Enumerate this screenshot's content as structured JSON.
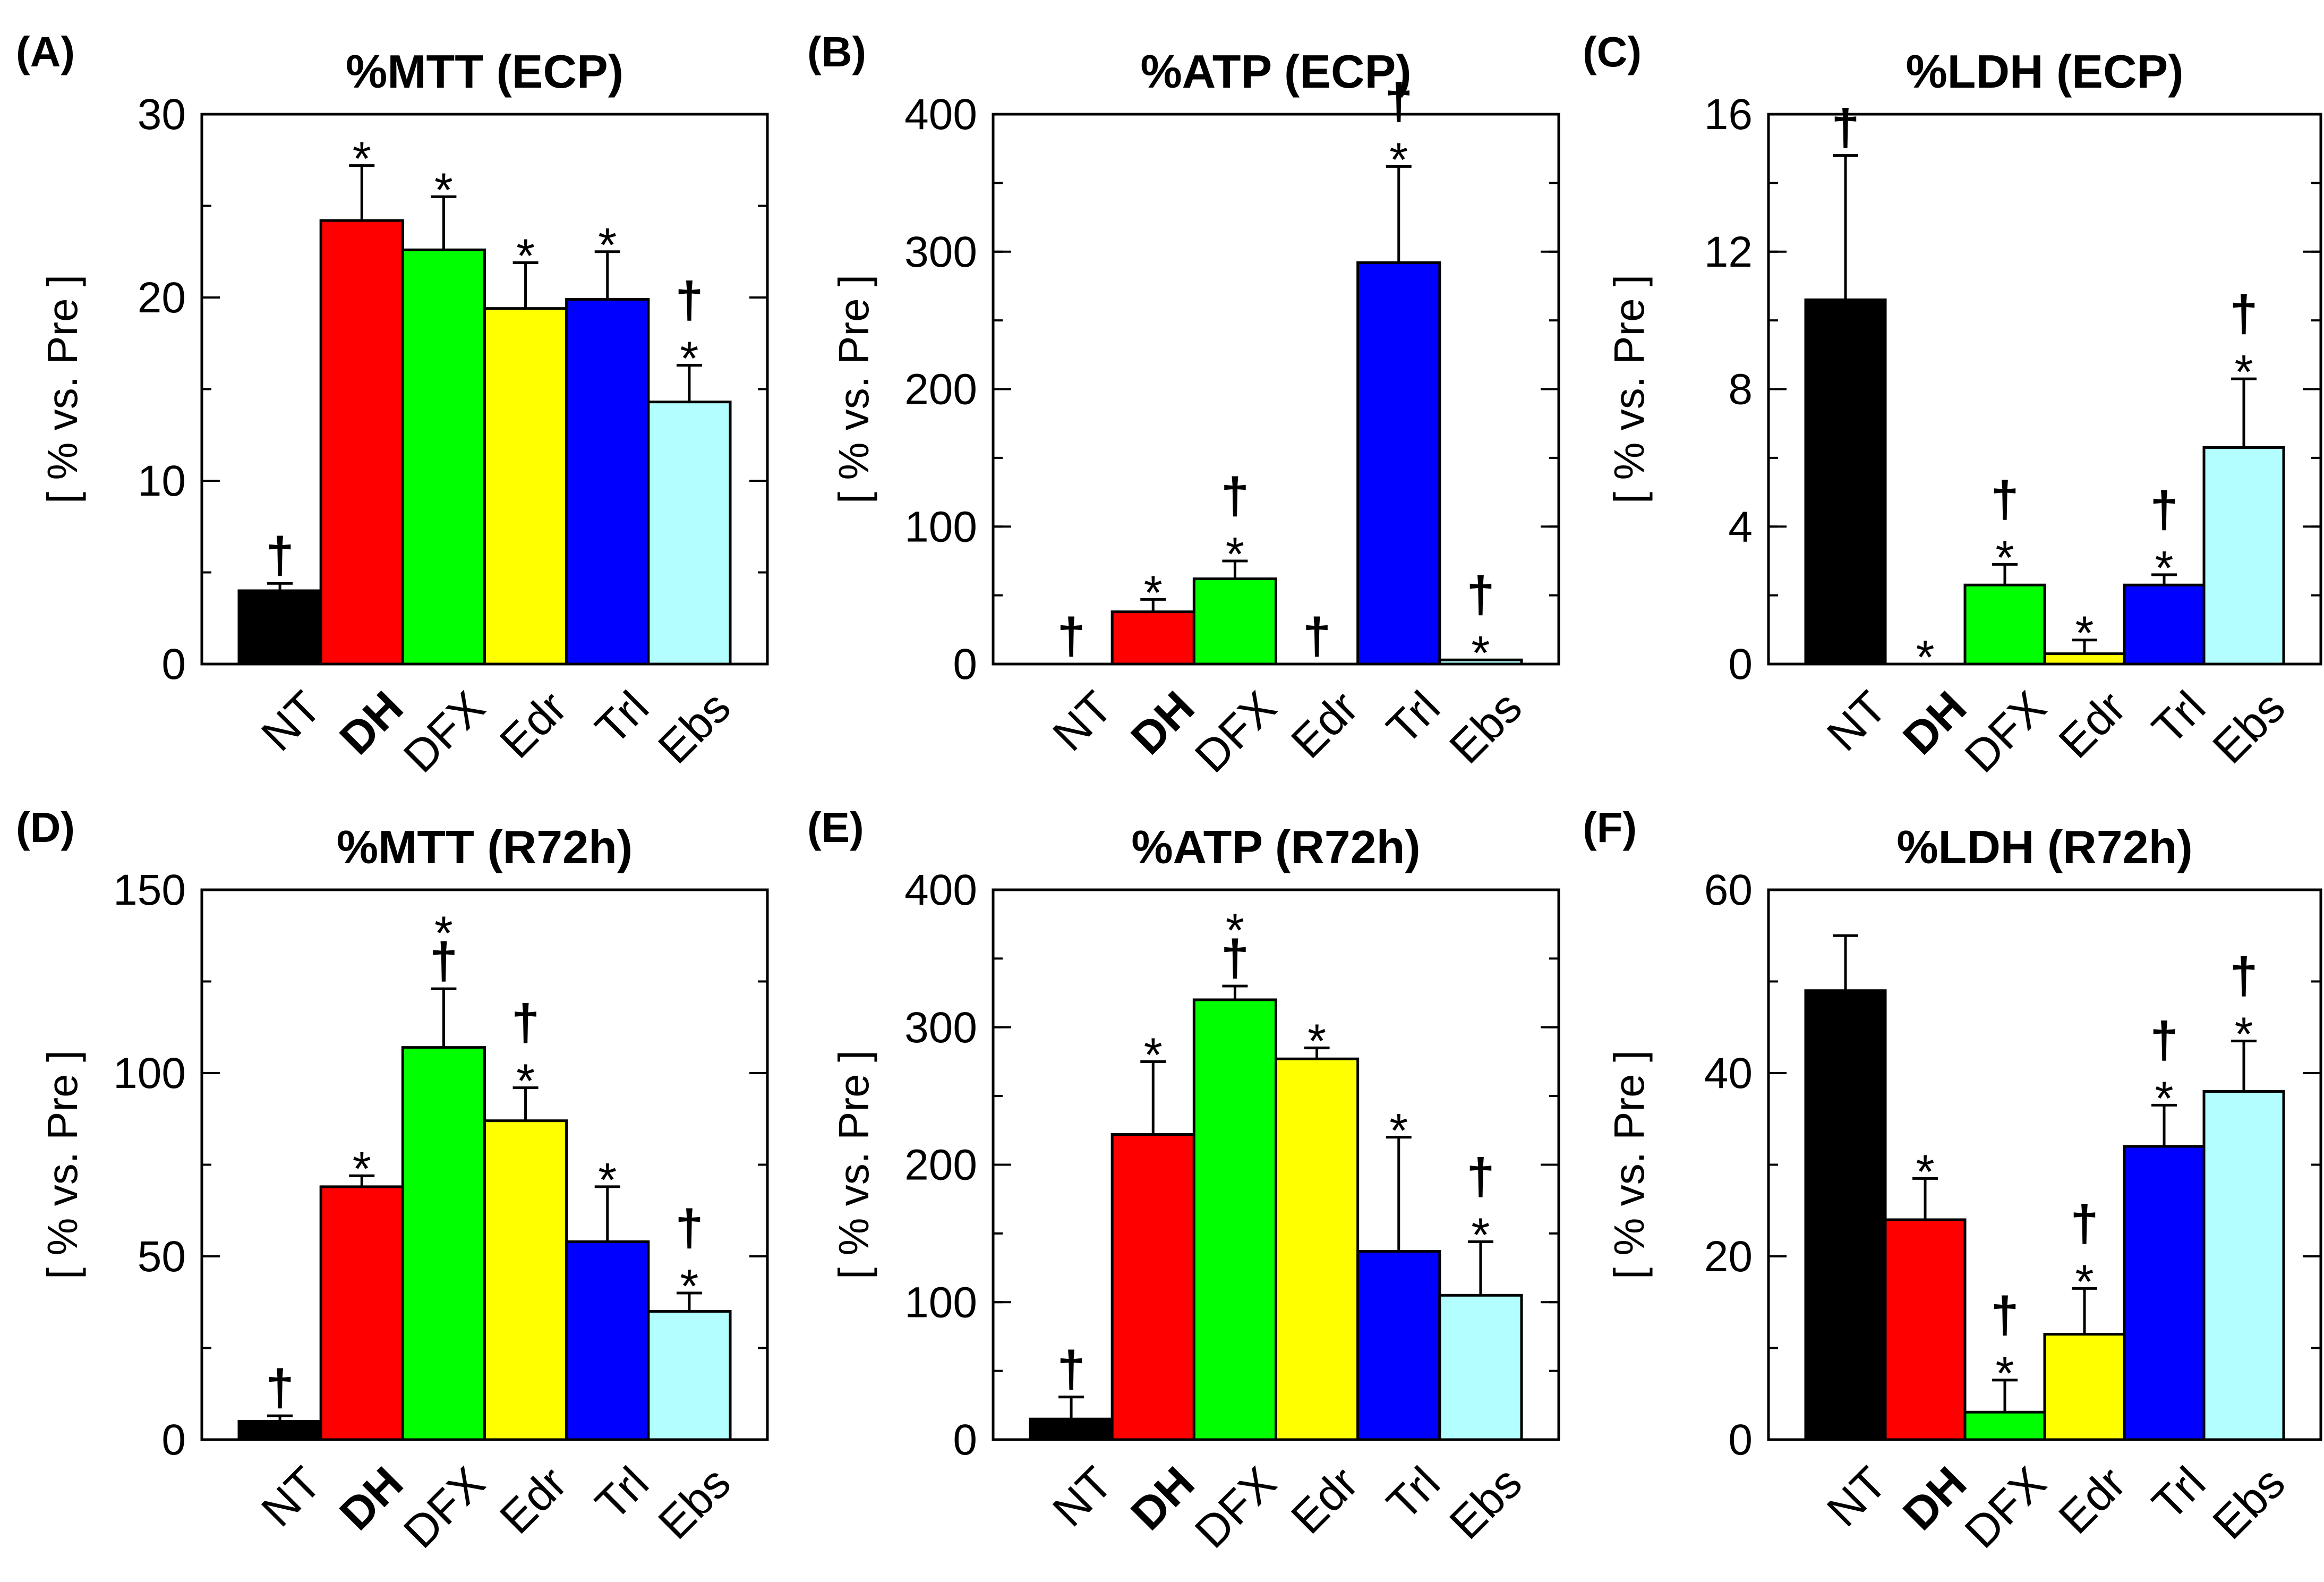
{
  "chart_data": [
    {
      "type": "bar",
      "panel": "(A)",
      "title": "%MTT (ECP)",
      "ylabel": "[ % vs. Pre ]",
      "ylim": [
        0,
        30
      ],
      "yticks": [
        0,
        10,
        20,
        30
      ],
      "minor_step": 5,
      "categories": [
        "NT",
        "DH",
        "DFX",
        "Edr",
        "Trl",
        "Ebs"
      ],
      "bold_category": "DH",
      "values": [
        4,
        24.2,
        22.6,
        19.4,
        19.9,
        14.3
      ],
      "errors": [
        0.4,
        3.0,
        2.9,
        2.5,
        2.6,
        2.0
      ],
      "colors": [
        "#000000",
        "#ff0000",
        "#00ff00",
        "#ffff00",
        "#0000ff",
        "#b3ffff"
      ],
      "markers": [
        "†",
        "*",
        "*",
        "*",
        "*",
        "†*"
      ]
    },
    {
      "type": "bar",
      "panel": "(B)",
      "title": "%ATP (ECP)",
      "ylabel": "[ % vs. Pre ]",
      "ylim": [
        0,
        400
      ],
      "yticks": [
        0,
        100,
        200,
        300,
        400
      ],
      "minor_step": 50,
      "categories": [
        "NT",
        "DH",
        "DFX",
        "Edr",
        "Trl",
        "Ebs"
      ],
      "bold_category": "DH",
      "values": [
        0,
        38,
        62,
        0,
        292,
        3
      ],
      "errors": [
        0,
        9,
        13,
        0,
        70,
        0
      ],
      "colors": [
        "#000000",
        "#ff0000",
        "#00ff00",
        "#ffff00",
        "#0000ff",
        "#b3ffff"
      ],
      "markers": [
        "†",
        "*",
        "†*",
        "†",
        "†*",
        "†*"
      ]
    },
    {
      "type": "bar",
      "panel": "(C)",
      "title": "%LDH  (ECP)",
      "ylabel": "[ % vs. Pre ]",
      "ylim": [
        0,
        16
      ],
      "yticks": [
        0,
        4,
        8,
        12,
        16
      ],
      "minor_step": 2,
      "categories": [
        "NT",
        "DH",
        "DFX",
        "Edr",
        "Trl",
        "Ebs"
      ],
      "bold_category": "DH",
      "values": [
        10.6,
        0,
        2.3,
        0.3,
        2.3,
        6.3
      ],
      "errors": [
        4.2,
        0,
        0.6,
        0.4,
        0.3,
        2.0
      ],
      "colors": [
        "#000000",
        "#ff0000",
        "#00ff00",
        "#ffff00",
        "#0000ff",
        "#b3ffff"
      ],
      "markers": [
        "†",
        "*",
        "†*",
        "*",
        "†*",
        "†*"
      ]
    },
    {
      "type": "bar",
      "panel": "(D)",
      "title": "%MTT (R72h)",
      "ylabel": "[ % vs. Pre ]",
      "ylim": [
        0,
        150
      ],
      "yticks": [
        0,
        50,
        100,
        150
      ],
      "minor_step": 25,
      "categories": [
        "NT",
        "DH",
        "DFX",
        "Edr",
        "Trl",
        "Ebs"
      ],
      "bold_category": "DH",
      "values": [
        5,
        69,
        107,
        87,
        54,
        35
      ],
      "errors": [
        1.5,
        3,
        16,
        9,
        15,
        5
      ],
      "colors": [
        "#000000",
        "#ff0000",
        "#00ff00",
        "#ffff00",
        "#0000ff",
        "#b3ffff"
      ],
      "markers": [
        "†",
        "*",
        "*†",
        "†*",
        "*",
        "†*"
      ]
    },
    {
      "type": "bar",
      "panel": "(E)",
      "title": "%ATP  (R72h)",
      "ylabel": "[ % vs. Pre ]",
      "ylim": [
        0,
        400
      ],
      "yticks": [
        0,
        100,
        200,
        300,
        400
      ],
      "minor_step": 50,
      "categories": [
        "NT",
        "DH",
        "DFX",
        "Edr",
        "Trl",
        "Ebs"
      ],
      "bold_category": "DH",
      "values": [
        15,
        222,
        320,
        277,
        137,
        105
      ],
      "errors": [
        16,
        53,
        10,
        8,
        83,
        39
      ],
      "colors": [
        "#000000",
        "#ff0000",
        "#00ff00",
        "#ffff00",
        "#0000ff",
        "#b3ffff"
      ],
      "markers": [
        "†",
        "*",
        "*†",
        "*",
        "*",
        "†*"
      ]
    },
    {
      "type": "bar",
      "panel": "(F)",
      "title": "%LDH (R72h)",
      "ylabel": "[ % vs. Pre ]",
      "ylim": [
        0,
        60
      ],
      "yticks": [
        0,
        20,
        40,
        60
      ],
      "minor_step": 10,
      "categories": [
        "NT",
        "DH",
        "DFX",
        "Edr",
        "Trl",
        "Ebs"
      ],
      "bold_category": "DH",
      "values": [
        49,
        24,
        3,
        11.5,
        32,
        38
      ],
      "errors": [
        6,
        4.5,
        3.5,
        5,
        4.5,
        5.5
      ],
      "colors": [
        "#000000",
        "#ff0000",
        "#00ff00",
        "#ffff00",
        "#0000ff",
        "#b3ffff"
      ],
      "markers": [
        "",
        "*",
        "†*",
        "†*",
        "†*",
        "†*"
      ]
    }
  ]
}
